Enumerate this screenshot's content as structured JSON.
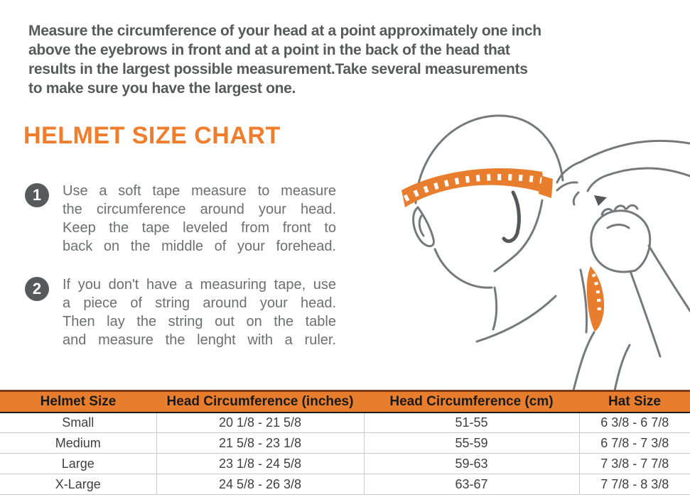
{
  "colors": {
    "accent": "#E87E2D",
    "heading_orange": "#F07D2C",
    "intro_gray": "#58595B",
    "step_gray": "#6D6E71",
    "circle_gray": "#58595B",
    "table_text": "#3F3F3F",
    "table_header_text": "#1A1A1A",
    "row_line": "#C9CACB",
    "header_top_border": "#7B3B16",
    "header_bottom_border": "#1B1B1B",
    "sketch_stroke": "#76797C"
  },
  "intro": {
    "text": "Measure the circumference of your head at a point approximately one inch\nabove the eyebrows in front and at a point in the back of the head that\nresults in the largest possible measurement.Take several measurements\nto make sure you have the largest one."
  },
  "heading": {
    "title": "HELMET SIZE CHART"
  },
  "steps": [
    {
      "number": "1",
      "text": "Use a soft tape measure to measure\nthe circumference around your head.\nKeep the tape leveled from front to\nback on the middle of your forehead."
    },
    {
      "number": "2",
      "text": "If you don't have a measuring tape, use\na piece of string around your head.\nThen lay the string out on the table\nand measure the lenght with a ruler."
    }
  ],
  "illustration": {
    "icon": "measuring-tape-around-head-icon"
  },
  "table": {
    "headers": [
      "Helmet Size",
      "Head Circumference (inches)",
      "Head Circumference (cm)",
      "Hat Size"
    ],
    "rows": [
      [
        "Small",
        "20 1/8 - 21 5/8",
        "51-55",
        "6 3/8 - 6 7/8"
      ],
      [
        "Medium",
        "21 5/8 - 23 1/8",
        "55-59",
        "6 7/8 - 7 3/8"
      ],
      [
        "Large",
        "23 1/8 - 24 5/8",
        "59-63",
        "7 3/8 - 7 7/8"
      ],
      [
        "X-Large",
        "24 5/8 - 26 3/8",
        "63-67",
        "7 7/8 - 8 3/8"
      ]
    ]
  }
}
